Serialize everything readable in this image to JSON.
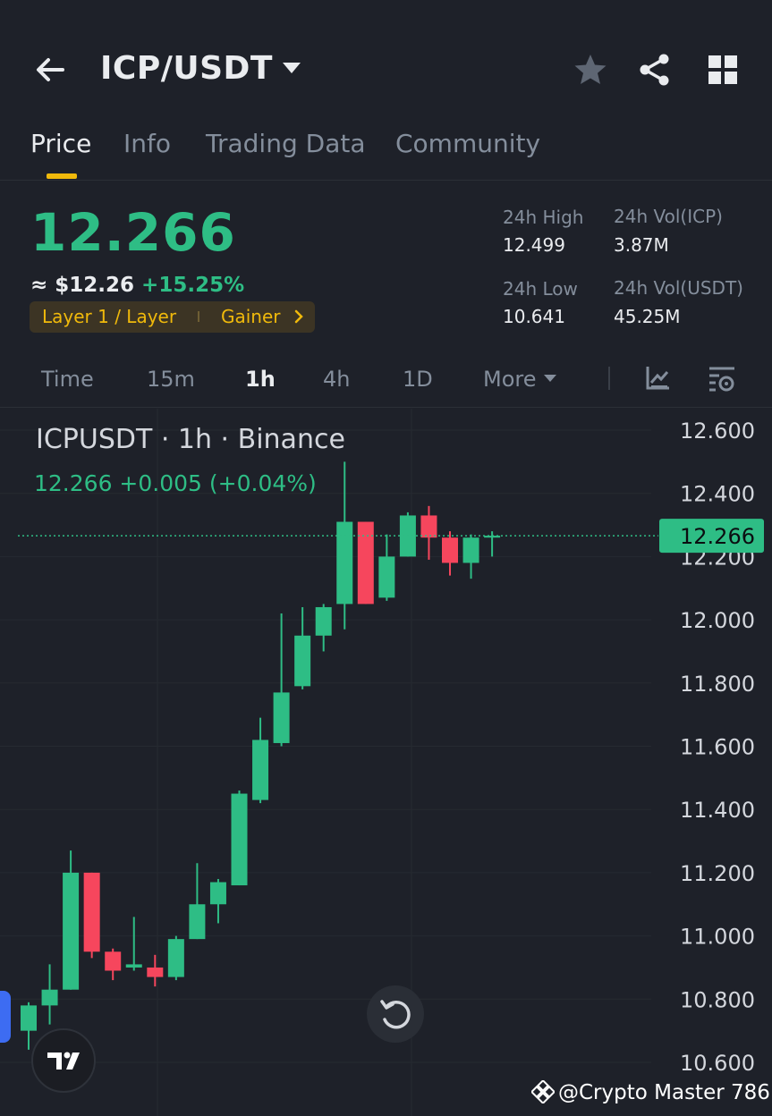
{
  "header": {
    "pair": "ICP/USDT",
    "icons": [
      "back-arrow-icon",
      "caret-down-icon",
      "star-icon",
      "share-icon",
      "grid-icon"
    ]
  },
  "tabs": [
    {
      "label": "Price",
      "active": true
    },
    {
      "label": "Info",
      "active": false
    },
    {
      "label": "Trading Data",
      "active": false
    },
    {
      "label": "Community",
      "active": false
    }
  ],
  "price": {
    "last": "12.266",
    "fiat": "≈ $12.26",
    "change": "+15.25%",
    "tag1": "Layer 1 / Layer",
    "tag2": "Gainer"
  },
  "stats": {
    "high_label": "24h High",
    "high_value": "12.499",
    "low_label": "24h Low",
    "low_value": "10.641",
    "vol_icp_label": "24h Vol(ICP)",
    "vol_icp_value": "3.87M",
    "vol_usdt_label": "24h Vol(USDT)",
    "vol_usdt_value": "45.25M"
  },
  "intervals": [
    {
      "label": "Time",
      "active": false
    },
    {
      "label": "15m",
      "active": false
    },
    {
      "label": "1h",
      "active": true
    },
    {
      "label": "4h",
      "active": false
    },
    {
      "label": "1D",
      "active": false
    },
    {
      "label": "More",
      "active": false
    }
  ],
  "colors": {
    "up": "#2ebd85",
    "down": "#f6465d",
    "accent": "#f0b90b",
    "bg": "#1e2129"
  },
  "chart": {
    "title": "ICPUSDT · 1h · Binance",
    "subtitle": "12.266  +0.005 (+0.04%)"
  },
  "chart_data": {
    "type": "candlestick",
    "title": "ICPUSDT · 1h · Binance",
    "ylim": [
      10.6,
      12.6
    ],
    "yticks": [
      "12.600",
      "12.400",
      "12.200",
      "12.000",
      "11.800",
      "11.600",
      "11.400",
      "11.200",
      "11.000",
      "10.800",
      "10.600"
    ],
    "last_price_label": "12.266",
    "last_price": 12.266,
    "candles": [
      {
        "o": 10.7,
        "h": 10.79,
        "l": 10.64,
        "c": 10.78
      },
      {
        "o": 10.78,
        "h": 10.91,
        "l": 10.72,
        "c": 10.83
      },
      {
        "o": 10.83,
        "h": 11.27,
        "l": 10.83,
        "c": 11.2
      },
      {
        "o": 11.2,
        "h": 11.2,
        "l": 10.93,
        "c": 10.95
      },
      {
        "o": 10.95,
        "h": 10.96,
        "l": 10.86,
        "c": 10.89
      },
      {
        "o": 10.9,
        "h": 11.06,
        "l": 10.89,
        "c": 10.91
      },
      {
        "o": 10.9,
        "h": 10.94,
        "l": 10.84,
        "c": 10.87
      },
      {
        "o": 10.87,
        "h": 11.0,
        "l": 10.86,
        "c": 10.99
      },
      {
        "o": 10.99,
        "h": 11.23,
        "l": 10.99,
        "c": 11.1
      },
      {
        "o": 11.1,
        "h": 11.18,
        "l": 11.04,
        "c": 11.17
      },
      {
        "o": 11.16,
        "h": 11.46,
        "l": 11.16,
        "c": 11.45
      },
      {
        "o": 11.43,
        "h": 11.69,
        "l": 11.42,
        "c": 11.62
      },
      {
        "o": 11.61,
        "h": 12.02,
        "l": 11.6,
        "c": 11.77
      },
      {
        "o": 11.79,
        "h": 12.04,
        "l": 11.78,
        "c": 11.95
      },
      {
        "o": 11.95,
        "h": 12.05,
        "l": 11.9,
        "c": 12.04
      },
      {
        "o": 12.05,
        "h": 12.5,
        "l": 11.97,
        "c": 12.31
      },
      {
        "o": 12.31,
        "h": 12.31,
        "l": 12.05,
        "c": 12.05
      },
      {
        "o": 12.07,
        "h": 12.27,
        "l": 12.06,
        "c": 12.2
      },
      {
        "o": 12.2,
        "h": 12.34,
        "l": 12.2,
        "c": 12.33
      },
      {
        "o": 12.33,
        "h": 12.36,
        "l": 12.19,
        "c": 12.26
      },
      {
        "o": 12.26,
        "h": 12.28,
        "l": 12.14,
        "c": 12.18
      },
      {
        "o": 12.18,
        "h": 12.27,
        "l": 12.13,
        "c": 12.26
      },
      {
        "o": 12.26,
        "h": 12.28,
        "l": 12.2,
        "c": 12.266
      }
    ]
  },
  "watermark": "@Crypto Master 786"
}
